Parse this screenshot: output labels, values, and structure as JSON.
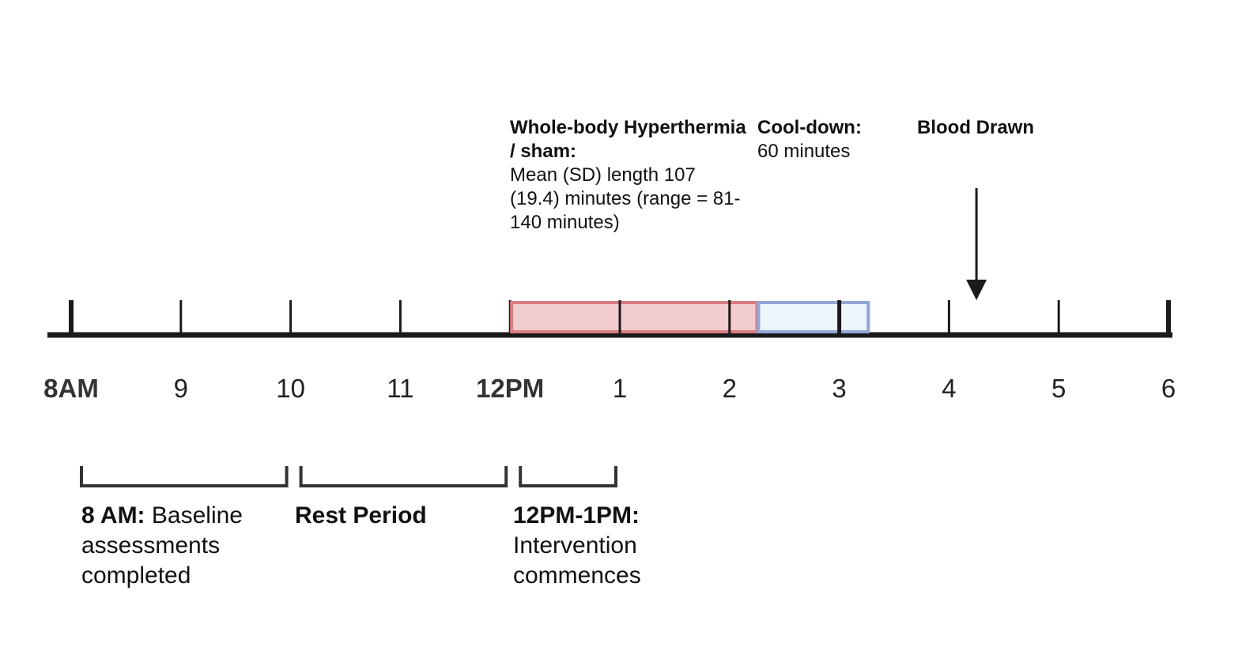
{
  "colors": {
    "axis": "#1a1a1a",
    "intervention_fill": "#f2cdd0",
    "intervention_stroke": "#d97c83",
    "cooldown_fill": "#edf4fb",
    "cooldown_stroke": "#93a6d6"
  },
  "ticks": [
    "8AM",
    "9",
    "10",
    "11",
    "12PM",
    "1",
    "2",
    "3",
    "4",
    "5",
    "6"
  ],
  "phases": {
    "intervention": {
      "title": "Whole-body Hyperthermia / sham:",
      "detail": "Mean (SD) length 107 (19.4) minutes (range = 81-140 minutes)",
      "start_hour": 12,
      "duration_min": 135
    },
    "cooldown": {
      "title": "Cool-down:",
      "detail": "60 minutes",
      "duration_min": 60
    },
    "blood_draw": {
      "title": "Blood Drawn",
      "hour": 16.25
    }
  },
  "periods": [
    {
      "bold": "8 AM:",
      "text": " Baseline assessments completed",
      "start_hour": 8,
      "end_hour": 10
    },
    {
      "bold": "Rest Period",
      "text": "",
      "start_hour": 10,
      "end_hour": 12
    },
    {
      "bold": "12PM-1PM:",
      "text": " Intervention commences",
      "start_hour": 12,
      "end_hour": 13
    }
  ]
}
